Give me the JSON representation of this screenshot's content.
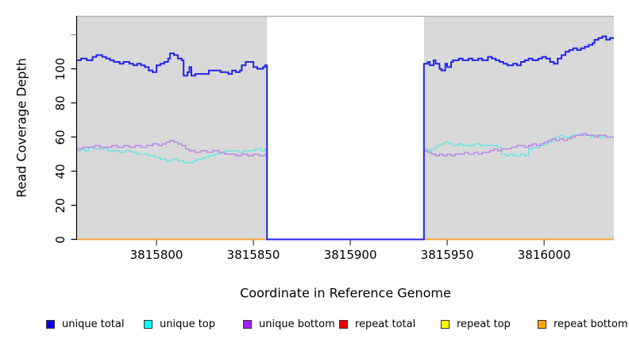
{
  "chart_data": {
    "type": "line",
    "step": true,
    "title": "",
    "xlabel": "Coordinate in Reference Genome",
    "ylabel": "Read Coverage Depth",
    "xlim": [
      3815759,
      3816036
    ],
    "ylim": [
      0,
      131
    ],
    "grid": false,
    "x_ticks": [
      3815800,
      3815850,
      3815900,
      3815950,
      3816000
    ],
    "y_ticks_labeled": [
      0,
      20,
      40,
      60,
      80,
      100
    ],
    "y_ticks_unlabeled": [
      120
    ],
    "background_shading": {
      "color": "#D9D9D9",
      "regions": [
        [
          3815759,
          3815857
        ],
        [
          3815938,
          3816036
        ]
      ]
    },
    "panel_top_border_color": "#ABABAB",
    "coverage_gap": [
      3815857,
      3815938
    ],
    "legend_position": "bottom",
    "draw_order": [
      "repeat total",
      "repeat top",
      "repeat bottom",
      "unique top",
      "unique bottom",
      "unique total"
    ],
    "series": [
      {
        "name": "unique total",
        "legend_color": "#0000EE",
        "line_color": "#2222EE",
        "line_width": 2,
        "points": [
          [
            3815759,
            105
          ],
          [
            3815761,
            106
          ],
          [
            3815764,
            105
          ],
          [
            3815767,
            107
          ],
          [
            3815769,
            108
          ],
          [
            3815772,
            107
          ],
          [
            3815774,
            106
          ],
          [
            3815776,
            105
          ],
          [
            3815778,
            104
          ],
          [
            3815781,
            103
          ],
          [
            3815783,
            104
          ],
          [
            3815786,
            103
          ],
          [
            3815788,
            102
          ],
          [
            3815790,
            103
          ],
          [
            3815792,
            102
          ],
          [
            3815794,
            101
          ],
          [
            3815796,
            99
          ],
          [
            3815798,
            98
          ],
          [
            3815800,
            102
          ],
          [
            3815802,
            103
          ],
          [
            3815804,
            104
          ],
          [
            3815806,
            106
          ],
          [
            3815807,
            109
          ],
          [
            3815809,
            108
          ],
          [
            3815811,
            106
          ],
          [
            3815813,
            105
          ],
          [
            3815814,
            96
          ],
          [
            3815816,
            98
          ],
          [
            3815817,
            101
          ],
          [
            3815818,
            96
          ],
          [
            3815820,
            97
          ],
          [
            3815825,
            97
          ],
          [
            3815827,
            99
          ],
          [
            3815832,
            99
          ],
          [
            3815833,
            98
          ],
          [
            3815837,
            97
          ],
          [
            3815839,
            99
          ],
          [
            3815841,
            98
          ],
          [
            3815843,
            99
          ],
          [
            3815844,
            102
          ],
          [
            3815846,
            104
          ],
          [
            3815848,
            104
          ],
          [
            3815850,
            101
          ],
          [
            3815852,
            100
          ],
          [
            3815855,
            101
          ],
          [
            3815856,
            102
          ],
          [
            3815857,
            0
          ],
          [
            3815938,
            103
          ],
          [
            3815940,
            104
          ],
          [
            3815941,
            102
          ],
          [
            3815943,
            105
          ],
          [
            3815944,
            103
          ],
          [
            3815946,
            100
          ],
          [
            3815947,
            99
          ],
          [
            3815949,
            103
          ],
          [
            3815950,
            101
          ],
          [
            3815952,
            104
          ],
          [
            3815953,
            105
          ],
          [
            3815956,
            106
          ],
          [
            3815958,
            105
          ],
          [
            3815961,
            106
          ],
          [
            3815963,
            105
          ],
          [
            3815966,
            106
          ],
          [
            3815968,
            105
          ],
          [
            3815971,
            107
          ],
          [
            3815973,
            106
          ],
          [
            3815975,
            105
          ],
          [
            3815977,
            104
          ],
          [
            3815979,
            103
          ],
          [
            3815981,
            102
          ],
          [
            3815984,
            103
          ],
          [
            3815986,
            102
          ],
          [
            3815988,
            104
          ],
          [
            3815990,
            105
          ],
          [
            3815992,
            106
          ],
          [
            3815994,
            105
          ],
          [
            3815997,
            106
          ],
          [
            3815999,
            107
          ],
          [
            3816001,
            106
          ],
          [
            3816003,
            104
          ],
          [
            3816005,
            103
          ],
          [
            3816007,
            106
          ],
          [
            3816009,
            108
          ],
          [
            3816011,
            110
          ],
          [
            3816013,
            111
          ],
          [
            3816015,
            112
          ],
          [
            3816017,
            111
          ],
          [
            3816019,
            112
          ],
          [
            3816021,
            113
          ],
          [
            3816023,
            114
          ],
          [
            3816025,
            115
          ],
          [
            3816026,
            117
          ],
          [
            3816028,
            118
          ],
          [
            3816030,
            119
          ],
          [
            3816032,
            117
          ],
          [
            3816034,
            118
          ]
        ]
      },
      {
        "name": "unique top",
        "legend_color": "#00FFFF",
        "line_color": "#5FE3E3",
        "line_width": 1.3,
        "points": [
          [
            3815759,
            52
          ],
          [
            3815761,
            53
          ],
          [
            3815763,
            52
          ],
          [
            3815765,
            54
          ],
          [
            3815768,
            53
          ],
          [
            3815772,
            53
          ],
          [
            3815775,
            52
          ],
          [
            3815778,
            52
          ],
          [
            3815781,
            51
          ],
          [
            3815784,
            52
          ],
          [
            3815787,
            51
          ],
          [
            3815790,
            50
          ],
          [
            3815793,
            50
          ],
          [
            3815796,
            49
          ],
          [
            3815799,
            48
          ],
          [
            3815802,
            47
          ],
          [
            3815805,
            46
          ],
          [
            3815808,
            47
          ],
          [
            3815811,
            46
          ],
          [
            3815814,
            45
          ],
          [
            3815817,
            45
          ],
          [
            3815819,
            46
          ],
          [
            3815821,
            47
          ],
          [
            3815824,
            48
          ],
          [
            3815827,
            49
          ],
          [
            3815830,
            50
          ],
          [
            3815833,
            51
          ],
          [
            3815836,
            52
          ],
          [
            3815839,
            52
          ],
          [
            3815842,
            51
          ],
          [
            3815845,
            52
          ],
          [
            3815848,
            52
          ],
          [
            3815851,
            53
          ],
          [
            3815854,
            52
          ],
          [
            3815856,
            53
          ],
          [
            3815857,
            0
          ],
          [
            3815938,
            53
          ],
          [
            3815940,
            52
          ],
          [
            3815942,
            53
          ],
          [
            3815944,
            54
          ],
          [
            3815945,
            55
          ],
          [
            3815947,
            56
          ],
          [
            3815949,
            57
          ],
          [
            3815951,
            56
          ],
          [
            3815953,
            55
          ],
          [
            3815956,
            56
          ],
          [
            3815958,
            55
          ],
          [
            3815961,
            55
          ],
          [
            3815964,
            56
          ],
          [
            3815967,
            55
          ],
          [
            3815970,
            55
          ],
          [
            3815973,
            55
          ],
          [
            3815976,
            54
          ],
          [
            3815978,
            50
          ],
          [
            3815980,
            49
          ],
          [
            3815982,
            50
          ],
          [
            3815984,
            49
          ],
          [
            3815986,
            49
          ],
          [
            3815988,
            50
          ],
          [
            3815990,
            49
          ],
          [
            3815992,
            53
          ],
          [
            3815994,
            54
          ],
          [
            3815996,
            54
          ],
          [
            3815998,
            55
          ],
          [
            3816000,
            56
          ],
          [
            3816002,
            57
          ],
          [
            3816004,
            58
          ],
          [
            3816006,
            60
          ],
          [
            3816008,
            61
          ],
          [
            3816010,
            60
          ],
          [
            3816012,
            60
          ],
          [
            3816014,
            61
          ],
          [
            3816016,
            61
          ],
          [
            3816018,
            62
          ],
          [
            3816020,
            61
          ],
          [
            3816022,
            61
          ],
          [
            3816024,
            60
          ],
          [
            3816026,
            61
          ],
          [
            3816028,
            60
          ],
          [
            3816030,
            60
          ],
          [
            3816033,
            60
          ]
        ]
      },
      {
        "name": "unique bottom",
        "legend_color": "#A020F0",
        "line_color": "#B67CE8",
        "line_width": 1.3,
        "points": [
          [
            3815759,
            53
          ],
          [
            3815762,
            54
          ],
          [
            3815765,
            54
          ],
          [
            3815768,
            55
          ],
          [
            3815771,
            54
          ],
          [
            3815774,
            54
          ],
          [
            3815777,
            55
          ],
          [
            3815780,
            54
          ],
          [
            3815783,
            55
          ],
          [
            3815786,
            54
          ],
          [
            3815789,
            55
          ],
          [
            3815792,
            54
          ],
          [
            3815795,
            55
          ],
          [
            3815798,
            56
          ],
          [
            3815801,
            55
          ],
          [
            3815803,
            56
          ],
          [
            3815805,
            57
          ],
          [
            3815807,
            58
          ],
          [
            3815809,
            57
          ],
          [
            3815811,
            56
          ],
          [
            3815813,
            55
          ],
          [
            3815815,
            53
          ],
          [
            3815817,
            52
          ],
          [
            3815820,
            51
          ],
          [
            3815823,
            52
          ],
          [
            3815826,
            51
          ],
          [
            3815829,
            52
          ],
          [
            3815832,
            51
          ],
          [
            3815835,
            50
          ],
          [
            3815838,
            50
          ],
          [
            3815841,
            49
          ],
          [
            3815844,
            50
          ],
          [
            3815847,
            49
          ],
          [
            3815850,
            50
          ],
          [
            3815853,
            49
          ],
          [
            3815856,
            50
          ],
          [
            3815857,
            0
          ],
          [
            3815938,
            52
          ],
          [
            3815940,
            51
          ],
          [
            3815942,
            50
          ],
          [
            3815944,
            49
          ],
          [
            3815946,
            50
          ],
          [
            3815948,
            49
          ],
          [
            3815950,
            50
          ],
          [
            3815952,
            49
          ],
          [
            3815954,
            50
          ],
          [
            3815957,
            50
          ],
          [
            3815959,
            51
          ],
          [
            3815961,
            50
          ],
          [
            3815964,
            51
          ],
          [
            3815966,
            50
          ],
          [
            3815968,
            51
          ],
          [
            3815970,
            51
          ],
          [
            3815972,
            52
          ],
          [
            3815974,
            53
          ],
          [
            3815976,
            52
          ],
          [
            3815978,
            53
          ],
          [
            3815981,
            53
          ],
          [
            3815983,
            54
          ],
          [
            3815986,
            55
          ],
          [
            3815988,
            55
          ],
          [
            3815990,
            54
          ],
          [
            3815992,
            55
          ],
          [
            3815994,
            56
          ],
          [
            3815996,
            55
          ],
          [
            3815998,
            56
          ],
          [
            3816000,
            57
          ],
          [
            3816002,
            58
          ],
          [
            3816004,
            59
          ],
          [
            3816006,
            58
          ],
          [
            3816008,
            59
          ],
          [
            3816010,
            58
          ],
          [
            3816012,
            59
          ],
          [
            3816014,
            60
          ],
          [
            3816016,
            61
          ],
          [
            3816018,
            61
          ],
          [
            3816020,
            62
          ],
          [
            3816022,
            61
          ],
          [
            3816024,
            61
          ],
          [
            3816026,
            60
          ],
          [
            3816028,
            61
          ],
          [
            3816030,
            61
          ],
          [
            3816032,
            60
          ],
          [
            3816034,
            60
          ]
        ]
      },
      {
        "name": "repeat total",
        "legend_color": "#EE0000",
        "line_color": "#CC0000",
        "line_width": 1.3,
        "points": [
          [
            3815759,
            0
          ],
          [
            3816036,
            0
          ]
        ]
      },
      {
        "name": "repeat top",
        "legend_color": "#FFFF00",
        "line_color": "#EEEE00",
        "line_width": 1.3,
        "points": [
          [
            3815759,
            0
          ],
          [
            3816036,
            0
          ]
        ]
      },
      {
        "name": "repeat bottom",
        "legend_color": "#FFA500",
        "line_color": "#FFA228",
        "line_width": 1.6,
        "points": [
          [
            3815759,
            0
          ],
          [
            3816036,
            0
          ]
        ]
      }
    ]
  },
  "legend": {
    "items": [
      {
        "label": "unique total",
        "color": "#0000EE"
      },
      {
        "label": "unique top",
        "color": "#00FFFF"
      },
      {
        "label": "unique bottom",
        "color": "#A020F0"
      },
      {
        "label": "repeat total",
        "color": "#EE0000"
      },
      {
        "label": "repeat top",
        "color": "#FFFF00"
      },
      {
        "label": "repeat bottom",
        "color": "#FFA500"
      }
    ]
  }
}
